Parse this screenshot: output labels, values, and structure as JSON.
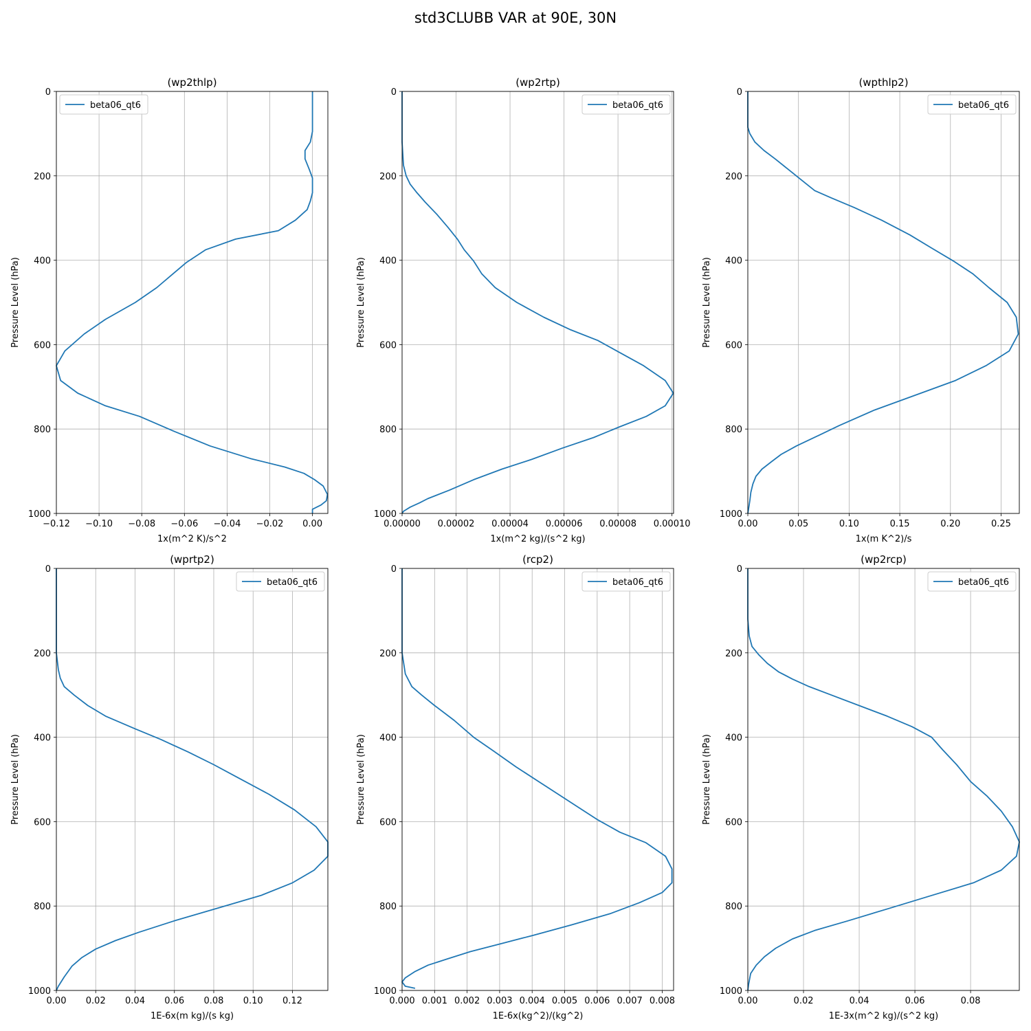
{
  "figure_title": "std3CLUBB VAR at 90E, 30N",
  "colors": {
    "line": "#1f77b4",
    "grid": "#b0b0b0",
    "axes": "#000000"
  },
  "chart_data": [
    {
      "type": "line",
      "title": "(wp2thlp)",
      "xlabel": "1x(m^2 K)/s^2",
      "ylabel": "Pressure Level (hPa)",
      "xlim": [
        -0.12,
        0.0072
      ],
      "ylim": [
        1000,
        0
      ],
      "xticks": [
        -0.12,
        -0.1,
        -0.08,
        -0.06,
        -0.04,
        -0.02,
        0.0
      ],
      "xtick_labels": [
        "−0.12",
        "−0.10",
        "−0.08",
        "−0.06",
        "−0.04",
        "−0.02",
        "0.00"
      ],
      "yticks": [
        0,
        200,
        400,
        600,
        800,
        1000
      ],
      "legend": "top-left",
      "series": [
        {
          "name": "beta06_qt6",
          "x": [
            0.0,
            0.0,
            0.0,
            -0.001,
            -0.0035,
            -0.0035,
            -0.0015,
            0.0,
            0.0,
            -0.001,
            -0.0025,
            -0.008,
            -0.016,
            -0.036,
            -0.05,
            -0.059,
            -0.073,
            -0.083,
            -0.097,
            -0.107,
            -0.116,
            -0.12,
            -0.118,
            -0.11,
            -0.097,
            -0.081,
            -0.065,
            -0.048,
            -0.029,
            -0.013,
            -0.004,
            0.001,
            0.005,
            0.007,
            0.0065,
            0.004,
            0.0,
            0.0
          ],
          "y": [
            0,
            50,
            95,
            120,
            140,
            160,
            185,
            205,
            240,
            260,
            280,
            305,
            330,
            350,
            375,
            405,
            465,
            500,
            540,
            575,
            615,
            650,
            685,
            715,
            745,
            770,
            805,
            840,
            870,
            890,
            905,
            920,
            935,
            955,
            970,
            980,
            990,
            1000
          ]
        }
      ]
    },
    {
      "type": "line",
      "title": "(wp2rtp)",
      "xlabel": "1x(m^2 kg)/(s^2 kg)",
      "ylabel": "Pressure Level (hPa)",
      "xlim": [
        0,
        0.0001006
      ],
      "ylim": [
        1000,
        0
      ],
      "xticks": [
        0,
        2e-05,
        4e-05,
        6e-05,
        8e-05,
        0.0001
      ],
      "xtick_labels": [
        "0.00000",
        "0.00002",
        "0.00004",
        "0.00006",
        "0.00008",
        "0.00010"
      ],
      "yticks": [
        0,
        200,
        400,
        600,
        800,
        1000
      ],
      "legend": "top-right",
      "series": [
        {
          "name": "beta06_qt6",
          "x": [
            0,
            0,
            5e-07,
            1.5e-06,
            3e-06,
            5.5e-06,
            8.5e-06,
            1.3e-05,
            1.7e-05,
            2.05e-05,
            2.3e-05,
            2.65e-05,
            2.95e-05,
            3.45e-05,
            4.25e-05,
            5.25e-05,
            6.25e-05,
            7.25e-05,
            8.1e-05,
            8.95e-05,
            9.75e-05,
            0.0001005,
            9.75e-05,
            9.05e-05,
            8.05e-05,
            7.1e-05,
            5.95e-05,
            4.8e-05,
            3.7e-05,
            2.65e-05,
            1.75e-05,
            9.5e-06,
            6.5e-06,
            3e-06,
            5e-07,
            0
          ],
          "y": [
            0,
            120,
            175,
            200,
            220,
            240,
            262,
            292,
            322,
            350,
            375,
            402,
            432,
            465,
            500,
            535,
            565,
            590,
            620,
            650,
            685,
            715,
            745,
            770,
            795,
            820,
            845,
            872,
            895,
            920,
            945,
            965,
            975,
            985,
            995,
            1000
          ]
        }
      ]
    },
    {
      "type": "line",
      "title": "(wpthlp2)",
      "xlabel": "1x(m K^2)/s",
      "ylabel": "Pressure Level (hPa)",
      "xlim": [
        0,
        0.268
      ],
      "ylim": [
        1000,
        0
      ],
      "xticks": [
        0,
        0.05,
        0.1,
        0.15,
        0.2,
        0.25
      ],
      "xtick_labels": [
        "0.00",
        "0.05",
        "0.10",
        "0.15",
        "0.20",
        "0.25"
      ],
      "yticks": [
        0,
        200,
        400,
        600,
        800,
        1000
      ],
      "legend": "top-right",
      "series": [
        {
          "name": "beta06_qt6",
          "x": [
            0,
            0.0,
            0.002,
            0.007,
            0.016,
            0.027,
            0.04,
            0.053,
            0.066,
            0.082,
            0.105,
            0.132,
            0.16,
            0.182,
            0.203,
            0.222,
            0.238,
            0.256,
            0.265,
            0.267,
            0.258,
            0.235,
            0.205,
            0.165,
            0.125,
            0.09,
            0.07,
            0.048,
            0.033,
            0.023,
            0.014,
            0.008,
            0.005,
            0.003,
            0.002,
            0.001,
            0.0
          ],
          "y": [
            0,
            85,
            100,
            120,
            140,
            160,
            185,
            210,
            235,
            252,
            275,
            305,
            340,
            372,
            402,
            432,
            465,
            500,
            535,
            575,
            615,
            650,
            685,
            720,
            755,
            792,
            815,
            840,
            860,
            878,
            895,
            912,
            930,
            950,
            970,
            985,
            1000
          ]
        }
      ]
    },
    {
      "type": "line",
      "title": "(wprtp2)",
      "xlabel": "1E-6x(m kg)/(s kg)",
      "ylabel": "Pressure Level (hPa)",
      "xlim": [
        0,
        0.138
      ],
      "ylim": [
        1000,
        0
      ],
      "xticks": [
        0,
        0.02,
        0.04,
        0.06,
        0.08,
        0.1,
        0.12
      ],
      "xtick_labels": [
        "0.00",
        "0.02",
        "0.04",
        "0.06",
        "0.08",
        "0.10",
        "0.12"
      ],
      "yticks": [
        0,
        200,
        400,
        600,
        800,
        1000
      ],
      "legend": "top-right",
      "series": [
        {
          "name": "beta06_qt6",
          "x": [
            0,
            0,
            0.001,
            0.002,
            0.004,
            0.009,
            0.016,
            0.025,
            0.04,
            0.053,
            0.067,
            0.08,
            0.092,
            0.108,
            0.121,
            0.132,
            0.138,
            0.138,
            0.131,
            0.12,
            0.104,
            0.082,
            0.06,
            0.042,
            0.03,
            0.02,
            0.013,
            0.008,
            0.004,
            0.001,
            0
          ],
          "y": [
            0,
            200,
            240,
            260,
            280,
            300,
            325,
            350,
            380,
            405,
            435,
            465,
            495,
            535,
            572,
            612,
            648,
            682,
            715,
            745,
            775,
            805,
            835,
            862,
            882,
            902,
            922,
            942,
            968,
            990,
            1000
          ]
        }
      ]
    },
    {
      "type": "line",
      "title": "(rcp2)",
      "xlabel": "1E-6x(kg^2)/(kg^2)",
      "ylabel": "Pressure Level (hPa)",
      "xlim": [
        0,
        0.00835
      ],
      "ylim": [
        1000,
        0
      ],
      "xticks": [
        0,
        0.001,
        0.002,
        0.003,
        0.004,
        0.005,
        0.006,
        0.007,
        0.008
      ],
      "xtick_labels": [
        "0.000",
        "0.001",
        "0.002",
        "0.003",
        "0.004",
        "0.005",
        "0.006",
        "0.007",
        "0.008"
      ],
      "yticks": [
        0,
        200,
        400,
        600,
        800,
        1000
      ],
      "legend": "top-right",
      "series": [
        {
          "name": "beta06_qt6",
          "x": [
            0,
            0,
            0.0001,
            0.0003,
            0.0006,
            0.001,
            0.0016,
            0.0022,
            0.0028,
            0.0035,
            0.0042,
            0.0048,
            0.0054,
            0.006,
            0.0067,
            0.0075,
            0.0081,
            0.0083,
            0.0083,
            0.008,
            0.0073,
            0.0064,
            0.0052,
            0.004,
            0.003,
            0.0021,
            0.0014,
            0.0008,
            0.0004,
            0.0001,
            0.0,
            0.0001,
            0.0004
          ],
          "y": [
            0,
            200,
            250,
            280,
            300,
            325,
            360,
            400,
            432,
            470,
            505,
            535,
            565,
            595,
            625,
            650,
            682,
            712,
            745,
            768,
            792,
            818,
            845,
            870,
            890,
            908,
            925,
            940,
            955,
            970,
            980,
            990,
            995
          ]
        }
      ]
    },
    {
      "type": "line",
      "title": "(wp2rcp)",
      "xlabel": "1E-3x(m^2 kg)/(s^2 kg)",
      "ylabel": "Pressure Level (hPa)",
      "xlim": [
        0,
        0.0975
      ],
      "ylim": [
        1000,
        0
      ],
      "xticks": [
        0,
        0.02,
        0.04,
        0.06,
        0.08
      ],
      "xtick_labels": [
        "0.00",
        "0.02",
        "0.04",
        "0.06",
        "0.08"
      ],
      "yticks": [
        0,
        200,
        400,
        600,
        800,
        1000
      ],
      "legend": "top-right",
      "series": [
        {
          "name": "beta06_qt6",
          "x": [
            0,
            0.0,
            0.0005,
            0.0015,
            0.004,
            0.007,
            0.011,
            0.016,
            0.022,
            0.03,
            0.05,
            0.059,
            0.066,
            0.07,
            0.075,
            0.08,
            0.086,
            0.091,
            0.095,
            0.0975,
            0.0965,
            0.091,
            0.081,
            0.066,
            0.051,
            0.036,
            0.024,
            0.016,
            0.01,
            0.006,
            0.003,
            0.001,
            0.0003,
            0
          ],
          "y": [
            0,
            120,
            160,
            185,
            205,
            225,
            245,
            262,
            280,
            300,
            350,
            375,
            400,
            430,
            465,
            505,
            540,
            575,
            612,
            648,
            682,
            715,
            745,
            775,
            805,
            835,
            858,
            878,
            900,
            920,
            940,
            960,
            985,
            1000
          ]
        }
      ]
    }
  ]
}
